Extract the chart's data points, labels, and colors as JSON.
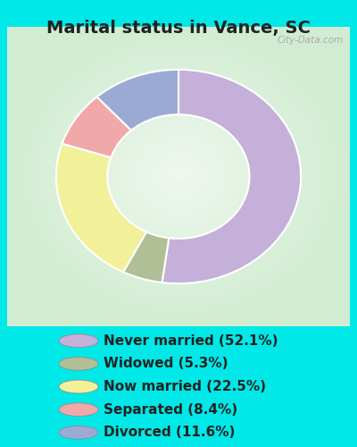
{
  "title": "Marital status in Vance, SC",
  "slices": [
    {
      "label": "Never married (52.1%)",
      "value": 52.1,
      "color": "#c4b0d8"
    },
    {
      "label": "Widowed (5.3%)",
      "value": 5.3,
      "color": "#b0bf96"
    },
    {
      "label": "Now married (22.5%)",
      "value": 22.5,
      "color": "#f2f098"
    },
    {
      "label": "Separated (8.4%)",
      "value": 8.4,
      "color": "#f0a8a8"
    },
    {
      "label": "Divorced (11.6%)",
      "value": 11.6,
      "color": "#9baad4"
    }
  ],
  "background_outer": "#00e8e8",
  "title_color": "#222222",
  "watermark": "City-Data.com",
  "title_fontsize": 14,
  "legend_fontsize": 11,
  "chart_panel_bg_center": "#e8f5e8",
  "chart_panel_bg_edge": "#c8e8c8"
}
